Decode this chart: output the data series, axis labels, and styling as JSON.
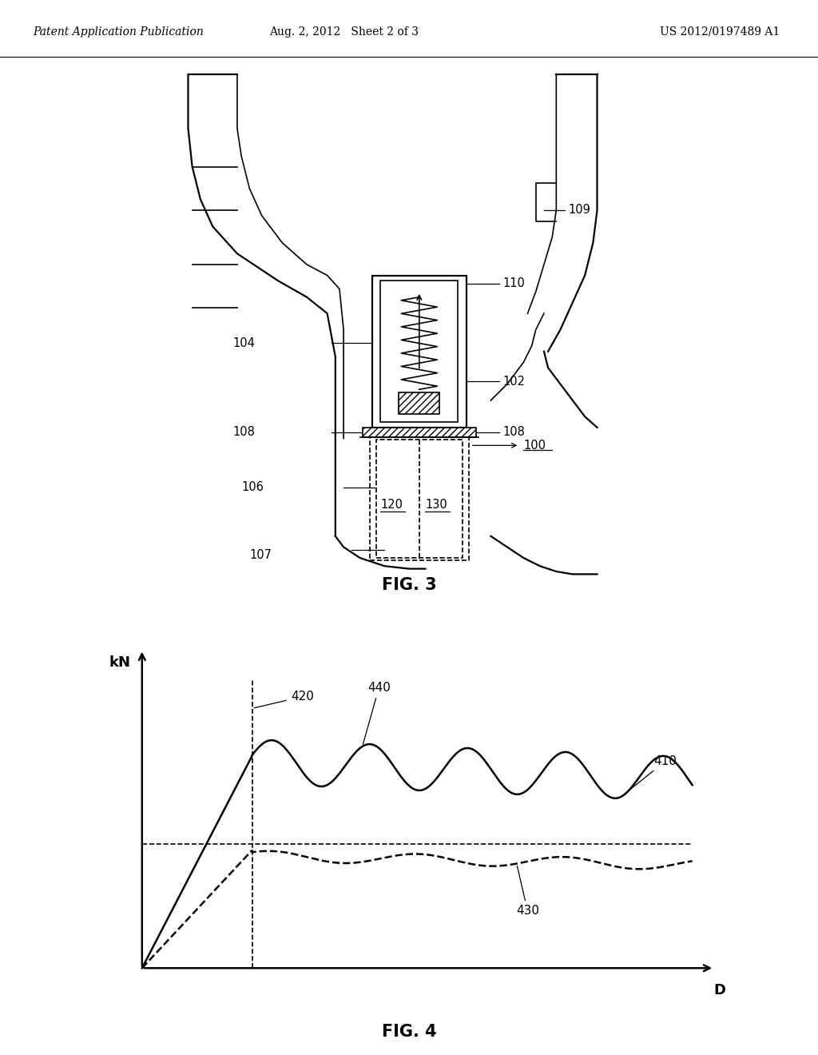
{
  "header_left": "Patent Application Publication",
  "header_mid": "Aug. 2, 2012   Sheet 2 of 3",
  "header_right": "US 2012/0197489 A1",
  "fig3_label": "FIG. 3",
  "fig4_label": "FIG. 4",
  "graph_xlabel": "D",
  "graph_ylabel": "kN",
  "background_color": "#ffffff"
}
